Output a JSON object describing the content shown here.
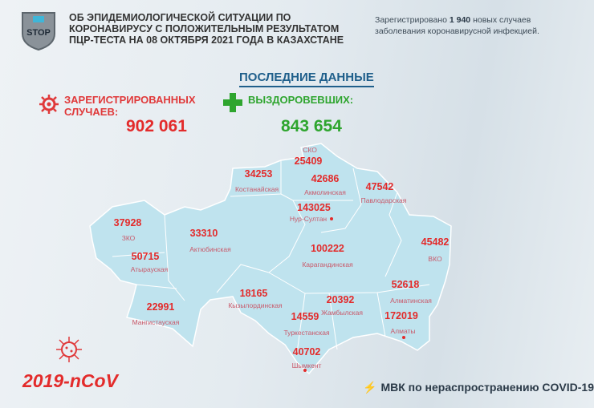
{
  "header": {
    "logo_text": "STOP",
    "title_lines": [
      "ОБ ЭПИДЕМИОЛОГИЧЕСКОЙ СИТУАЦИИ ПО",
      "КОРОНАВИРУСУ С ПОЛОЖИТЕЛЬНЫМ РЕЗУЛЬТАТОМ",
      "ПЦР-ТЕСТА НА 08 ОКТЯБРЯ 2021 ГОДА В КАЗАХСТАНЕ"
    ],
    "new_cases_prefix": "Зарегистрировано",
    "new_cases_count": "1 940",
    "new_cases_suffix": "новых случаев",
    "new_cases_line2": "заболевания коронавирусной инфекцией."
  },
  "latest_label": "ПОСЛЕДНИЕ ДАННЫЕ",
  "registered": {
    "label_line1": "ЗАРЕГИСТРИРОВАННЫХ",
    "label_line2": "СЛУЧАЕВ:",
    "value": "902 061",
    "color": "#e32b2b"
  },
  "recovered": {
    "label": "ВЫЗДОРОВЕВШИХ:",
    "value": "843 654",
    "color": "#2ea52e"
  },
  "regions": [
    {
      "name": "СКО",
      "cases": "25409"
    },
    {
      "name": "Костанайская",
      "cases": "34253"
    },
    {
      "name": "Акмолинская",
      "cases": "42686"
    },
    {
      "name": "Павлодарская",
      "cases": "47542"
    },
    {
      "name": "Нур-Султан",
      "cases": "143025"
    },
    {
      "name": "ЗКО",
      "cases": "37928"
    },
    {
      "name": "Актюбинская",
      "cases": "33310"
    },
    {
      "name": "Карагандинская",
      "cases": "100222"
    },
    {
      "name": "ВКО",
      "cases": "45482"
    },
    {
      "name": "Атырауская",
      "cases": "50715"
    },
    {
      "name": "Кызылординская",
      "cases": "18165"
    },
    {
      "name": "Жамбылская",
      "cases": "20392"
    },
    {
      "name": "Алматинская",
      "cases": "52618"
    },
    {
      "name": "Туркестанская",
      "cases": "14559"
    },
    {
      "name": "Алматы",
      "cases": "172019"
    },
    {
      "name": "Мангистауская",
      "cases": "22991"
    },
    {
      "name": "Шымкент",
      "cases": "40702"
    }
  ],
  "footer": {
    "virus_label": "2019-nCoV",
    "mvk_label": "МВК по нераспространению COVID-19"
  },
  "colors": {
    "map_fill": "#bfe3ee",
    "map_border": "#ffffff",
    "title_blue": "#1f5f8b"
  }
}
